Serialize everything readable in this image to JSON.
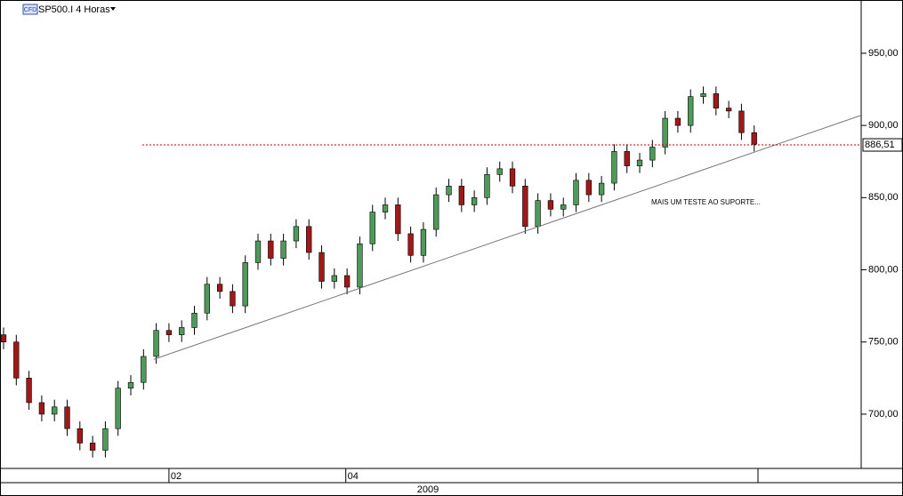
{
  "chart_data": {
    "type": "candlestick",
    "title": "SP500.I 4 Horas",
    "badge": "CFD",
    "annotation": "MAIS UM TESTE AO SUPORTE...",
    "year_label": "2009",
    "up_color": "#4f9a5a",
    "down_color": "#a01818",
    "xlim": [
      -0.28,
      67.41
    ],
    "xticks": [
      {
        "value": 13,
        "label": "02"
      },
      {
        "value": 26.9,
        "label": "04"
      }
    ],
    "ylim": [
      662.4,
      986.9
    ],
    "yticks": [
      {
        "value": 700,
        "label": "700,00"
      },
      {
        "value": 750,
        "label": "750,00"
      },
      {
        "value": 800,
        "label": "800,00"
      },
      {
        "value": 850,
        "label": "850,00"
      },
      {
        "value": 900,
        "label": "900,00"
      },
      {
        "value": 950,
        "label": "950,00"
      }
    ],
    "last_price": {
      "value": 886.51,
      "label": "886,51"
    },
    "trend_line": {
      "x": [
        11.8,
        67.4
      ],
      "y": [
        738,
        907
      ]
    },
    "open": [
      755,
      750,
      725,
      708,
      700,
      705,
      690,
      680,
      675,
      690,
      718,
      722,
      740,
      758,
      755,
      760,
      770,
      790,
      785,
      775,
      805,
      820,
      808,
      820,
      830,
      812,
      792,
      796,
      788,
      818,
      840,
      845,
      825,
      810,
      828,
      852,
      858,
      845,
      850,
      866,
      870,
      858,
      830,
      848,
      842,
      845,
      862,
      852,
      860,
      882,
      872,
      876,
      885,
      905,
      900,
      920,
      922,
      912,
      910,
      895
    ],
    "high": [
      760,
      755,
      730,
      713,
      710,
      710,
      695,
      685,
      695,
      723,
      727,
      745,
      763,
      763,
      765,
      775,
      795,
      795,
      790,
      810,
      825,
      825,
      825,
      835,
      835,
      817,
      801,
      801,
      823,
      845,
      850,
      850,
      830,
      833,
      857,
      863,
      863,
      855,
      871,
      875,
      875,
      863,
      853,
      853,
      850,
      867,
      867,
      865,
      887,
      887,
      881,
      890,
      910,
      910,
      925,
      927,
      927,
      917,
      915,
      900
    ],
    "low": [
      745,
      720,
      703,
      695,
      695,
      685,
      675,
      670,
      670,
      685,
      713,
      717,
      735,
      750,
      750,
      755,
      765,
      780,
      770,
      770,
      800,
      803,
      803,
      815,
      807,
      787,
      787,
      783,
      783,
      813,
      835,
      820,
      805,
      805,
      823,
      847,
      840,
      840,
      845,
      861,
      853,
      825,
      825,
      837,
      837,
      840,
      847,
      847,
      855,
      867,
      867,
      871,
      880,
      895,
      895,
      915,
      907,
      905,
      890,
      882
    ],
    "close": [
      750,
      725,
      708,
      700,
      705,
      690,
      680,
      675,
      690,
      718,
      722,
      740,
      758,
      755,
      760,
      770,
      790,
      785,
      775,
      805,
      820,
      808,
      820,
      830,
      812,
      792,
      796,
      788,
      818,
      840,
      845,
      825,
      810,
      828,
      852,
      858,
      845,
      850,
      866,
      870,
      858,
      830,
      848,
      842,
      845,
      862,
      852,
      860,
      882,
      872,
      876,
      885,
      905,
      900,
      920,
      922,
      912,
      910,
      895,
      887
    ]
  }
}
